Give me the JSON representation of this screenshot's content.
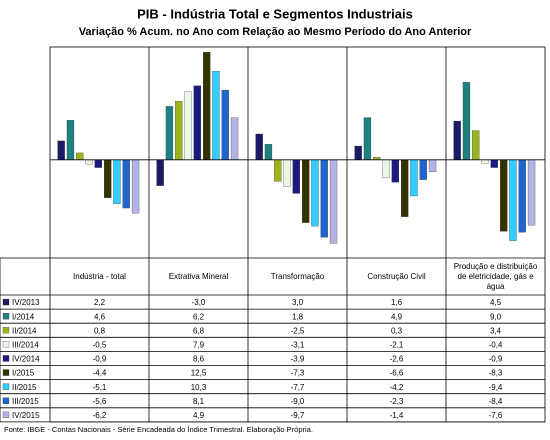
{
  "chart_data": {
    "type": "bar",
    "title": "PIB - Indústria Total e Segmentos Industriais",
    "subtitle": "Variação % Acum. no Ano com Relação ao Mesmo Período do Ano Anterior",
    "categories": [
      "Indústria - total",
      "Extrativa Mineral",
      "Transformação",
      "Construção Civil",
      "Produção e distribuição de eletricidade, gás e água"
    ],
    "ylim": [
      -11.4,
      13.1
    ],
    "series": [
      {
        "name": "IV/2013",
        "color": "#1a1a66",
        "values": [
          2.2,
          -3.0,
          3.0,
          1.6,
          4.5
        ],
        "value_labels": [
          "2,2",
          "-3,0",
          "3,0",
          "1,6",
          "4,5"
        ]
      },
      {
        "name": "I/2014",
        "color": "#1f8080",
        "values": [
          4.6,
          6.2,
          1.8,
          4.9,
          9.0
        ],
        "value_labels": [
          "4,6",
          "6,2",
          "1,8",
          "4,9",
          "9,0"
        ]
      },
      {
        "name": "II/2014",
        "color": "#9ab31f",
        "values": [
          0.8,
          6.8,
          -2.5,
          0.3,
          3.4
        ],
        "value_labels": [
          "0,8",
          "6,8",
          "-2,5",
          "0,3",
          "3,4"
        ]
      },
      {
        "name": "III/2014",
        "color": "#eaf6e4",
        "values": [
          -0.5,
          7.9,
          -3.1,
          -2.1,
          -0.4
        ],
        "value_labels": [
          "-0,5",
          "7,9",
          "-3,1",
          "-2,1",
          "-0,4"
        ]
      },
      {
        "name": "IV/2014",
        "color": "#1a1a80",
        "values": [
          -0.9,
          8.6,
          -3.9,
          -2.6,
          -0.9
        ],
        "value_labels": [
          "-0,9",
          "8,6",
          "-3,9",
          "-2,6",
          "-0,9"
        ]
      },
      {
        "name": "I/2015",
        "color": "#333300",
        "values": [
          -4.4,
          12.5,
          -7.3,
          -6.6,
          -8.3
        ],
        "value_labels": [
          "-4,4",
          "12,5",
          "-7,3",
          "-6,6",
          "-8,3"
        ]
      },
      {
        "name": "II/2015",
        "color": "#33ccff",
        "values": [
          -5.1,
          10.3,
          -7.7,
          -4.2,
          -9.4
        ],
        "value_labels": [
          "-5,1",
          "10,3",
          "-7,7",
          "-4,2",
          "-9,4"
        ]
      },
      {
        "name": "III/2015",
        "color": "#1f66cc",
        "values": [
          -5.6,
          8.1,
          -9.0,
          -2.3,
          -8.4
        ],
        "value_labels": [
          "-5,6",
          "8,1",
          "-9,0",
          "-2,3",
          "-8,4"
        ]
      },
      {
        "name": "IV/2015",
        "color": "#b3b3e6",
        "values": [
          -6.2,
          4.9,
          -9.7,
          -1.4,
          -7.6
        ],
        "value_labels": [
          "-6,2",
          "4,9",
          "-9,7",
          "-1,4",
          "-7,6"
        ]
      }
    ],
    "footnote": "Fonte: IBGE - Contas Nacionais - Série Encadeada do Índice Trimestral. Elaboração Própria."
  }
}
